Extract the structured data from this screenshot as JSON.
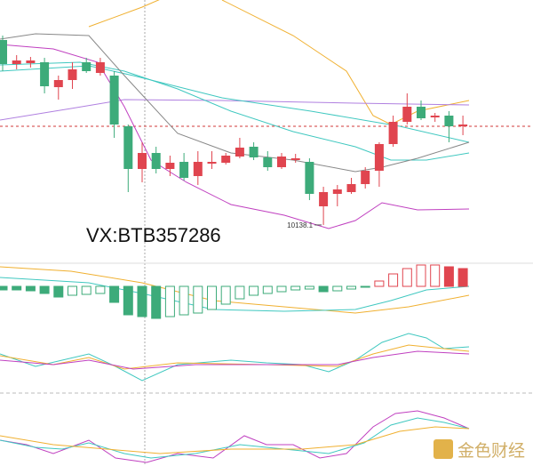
{
  "chart_data": {
    "type": "candlestick",
    "annotation": "VX:BTB357286",
    "low_label": "10138.1",
    "watermark": "金色财经",
    "ylim": [
      10064,
      10644
    ],
    "up_color": "#e0454f",
    "down_color": "#3dab7a",
    "open": [
      10554,
      10500,
      10502,
      10504,
      10448,
      10464,
      10504,
      10480,
      10474,
      10360,
      10264,
      10300,
      10264,
      10280,
      10248,
      10276,
      10278,
      10292,
      10314,
      10290,
      10268,
      10284,
      10280,
      10180,
      10208,
      10212,
      10230,
      10260,
      10320,
      10370,
      10404,
      10380,
      10384,
      10360
    ],
    "high": [
      10564,
      10520,
      10516,
      10514,
      10474,
      10504,
      10514,
      10514,
      10484,
      10364,
      10324,
      10314,
      10294,
      10300,
      10304,
      10304,
      10300,
      10334,
      10324,
      10304,
      10300,
      10298,
      10288,
      10224,
      10228,
      10244,
      10268,
      10324,
      10384,
      10434,
      10418,
      10390,
      10394,
      10384
    ],
    "low": [
      10484,
      10488,
      10492,
      10434,
      10420,
      10444,
      10480,
      10474,
      10334,
      10212,
      10234,
      10254,
      10248,
      10238,
      10228,
      10264,
      10274,
      10288,
      10284,
      10260,
      10264,
      10278,
      10194,
      10138.1,
      10180,
      10208,
      10220,
      10224,
      10314,
      10364,
      10374,
      10370,
      10324,
      10340
    ],
    "close": [
      10500,
      10508,
      10508,
      10450,
      10464,
      10488,
      10484,
      10504,
      10364,
      10264,
      10300,
      10264,
      10278,
      10244,
      10280,
      10280,
      10294,
      10312,
      10290,
      10268,
      10292,
      10288,
      10208,
      10212,
      10218,
      10230,
      10260,
      10320,
      10370,
      10404,
      10378,
      10384,
      10360,
      10364
    ],
    "macd_histogram": [
      -4,
      -4,
      -5,
      -8,
      -12,
      -10,
      -9,
      -8,
      -18,
      -32,
      -34,
      -36,
      -34,
      -32,
      -30,
      -26,
      -20,
      -14,
      -10,
      -8,
      -6,
      -4,
      -3,
      -6,
      -5,
      -3,
      -1,
      6,
      14,
      20,
      24,
      24,
      22,
      20
    ]
  }
}
